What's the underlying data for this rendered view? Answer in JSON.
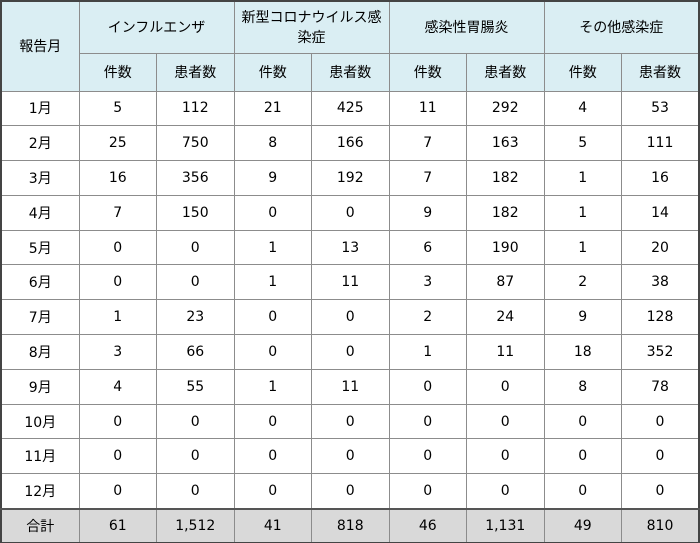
{
  "header": {
    "row_label": "報告月",
    "groups": [
      "インフルエンザ",
      "新型コロナウイルス感染症",
      "感染性胃腸炎",
      "その他感染症"
    ],
    "subcolumns": [
      "件数",
      "患者数",
      "件数",
      "患者数",
      "件数",
      "患者数",
      "件数",
      "患者数"
    ]
  },
  "rows": [
    [
      "1月",
      "5",
      "112",
      "21",
      "425",
      "11",
      "292",
      "4",
      "53"
    ],
    [
      "2月",
      "25",
      "750",
      "8",
      "166",
      "7",
      "163",
      "5",
      "111"
    ],
    [
      "3月",
      "16",
      "356",
      "9",
      "192",
      "7",
      "182",
      "1",
      "16"
    ],
    [
      "4月",
      "7",
      "150",
      "0",
      "0",
      "9",
      "182",
      "1",
      "14"
    ],
    [
      "5月",
      "0",
      "0",
      "1",
      "13",
      "6",
      "190",
      "1",
      "20"
    ],
    [
      "6月",
      "0",
      "0",
      "1",
      "11",
      "3",
      "87",
      "2",
      "38"
    ],
    [
      "7月",
      "1",
      "23",
      "0",
      "0",
      "2",
      "24",
      "9",
      "128"
    ],
    [
      "8月",
      "3",
      "66",
      "0",
      "0",
      "1",
      "11",
      "18",
      "352"
    ],
    [
      "9月",
      "4",
      "55",
      "1",
      "11",
      "0",
      "0",
      "8",
      "78"
    ],
    [
      "10月",
      "0",
      "0",
      "0",
      "0",
      "0",
      "0",
      "0",
      "0"
    ],
    [
      "11月",
      "0",
      "0",
      "0",
      "0",
      "0",
      "0",
      "0",
      "0"
    ],
    [
      "12月",
      "0",
      "0",
      "0",
      "0",
      "0",
      "0",
      "0",
      "0"
    ]
  ],
  "total": [
    "合計",
    "61",
    "1,512",
    "41",
    "818",
    "46",
    "1,131",
    "49",
    "810"
  ]
}
